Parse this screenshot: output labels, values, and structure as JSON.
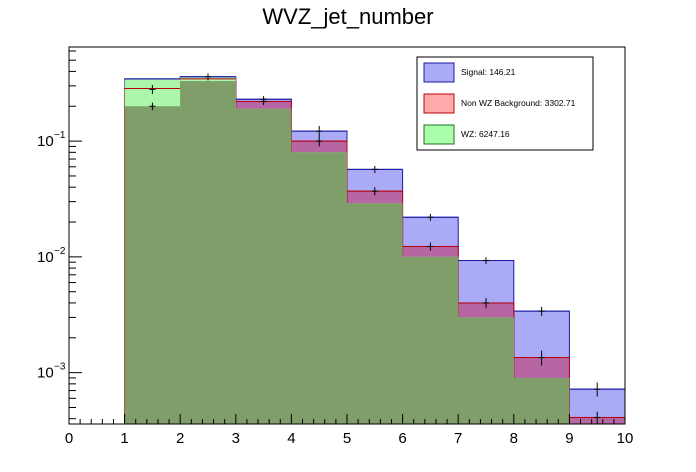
{
  "chart_data": {
    "type": "bar",
    "style": "stacked-histogram",
    "title": "WVZ_jet_number",
    "xlabel": "",
    "ylabel": "",
    "xlim": [
      0,
      10
    ],
    "ylim": [
      0.00036,
      0.65
    ],
    "yscale": "log",
    "x_ticks": [
      "0",
      "1",
      "2",
      "3",
      "4",
      "5",
      "6",
      "7",
      "8",
      "9",
      "10"
    ],
    "y_ticks": [
      {
        "value": 0.1,
        "base": "10",
        "exp": "−1"
      },
      {
        "value": 0.01,
        "base": "10",
        "exp": "−2"
      },
      {
        "value": 0.001,
        "base": "10",
        "exp": "−3"
      }
    ],
    "bin_edges": [
      0,
      1,
      2,
      3,
      4,
      5,
      6,
      7,
      8,
      9,
      10
    ],
    "stack_order": [
      "WZ",
      "Non WZ Background",
      "Signal"
    ],
    "series": [
      {
        "name": "Signal",
        "legend_label": "Signal: 146.21",
        "color": "#aaaaf6",
        "edge_color": "#1a1aa8",
        "cumulative": [
          0,
          0.345,
          0.36,
          0.23,
          0.122,
          0.057,
          0.022,
          0.0093,
          0.0034,
          0.00072
        ]
      },
      {
        "name": "Non WZ Background",
        "legend_label": "Non WZ Background: 3302.71",
        "color": "#b566a3",
        "edge_color": "#b8000c",
        "cumulative": [
          0,
          0.285,
          0.345,
          0.22,
          0.1,
          0.037,
          0.0123,
          0.004,
          0.00135,
          0.00041
        ]
      },
      {
        "name": "WZ",
        "legend_label": "WZ: 6247.16",
        "color": "#7f9e6a",
        "edge_color": "#1f6e1f",
        "cumulative": [
          0,
          0.2,
          0.33,
          0.19,
          0.08,
          0.029,
          0.01,
          0.003,
          0.0009,
          0.00036
        ]
      }
    ],
    "legend_swatches": {
      "Signal": "#aaaaf6",
      "Non WZ Background": "#ffaaaa",
      "WZ": "#aaffaa"
    },
    "top_overlay": {
      "name": "WZ upper",
      "color": "#aaf6aa",
      "values": [
        0,
        0.34,
        0.355,
        0.19,
        0.08,
        0.029,
        0.01,
        0.003,
        0.0009,
        0.00036
      ]
    },
    "error_bars": [
      {
        "bin": 1,
        "value": 0.28,
        "low": 0.255,
        "high": 0.305
      },
      {
        "bin": 1,
        "value": 0.2,
        "low": 0.185,
        "high": 0.215
      },
      {
        "bin": 2,
        "value": 0.36,
        "low": 0.335,
        "high": 0.385
      },
      {
        "bin": 3,
        "value": 0.23,
        "low": 0.215,
        "high": 0.245
      },
      {
        "bin": 3,
        "value": 0.22,
        "low": 0.205,
        "high": 0.235
      },
      {
        "bin": 4,
        "value": 0.122,
        "low": 0.11,
        "high": 0.135
      },
      {
        "bin": 4,
        "value": 0.1,
        "low": 0.09,
        "high": 0.11
      },
      {
        "bin": 5,
        "value": 0.057,
        "low": 0.053,
        "high": 0.061
      },
      {
        "bin": 5,
        "value": 0.037,
        "low": 0.034,
        "high": 0.04
      },
      {
        "bin": 6,
        "value": 0.022,
        "low": 0.0205,
        "high": 0.0235
      },
      {
        "bin": 6,
        "value": 0.0123,
        "low": 0.0113,
        "high": 0.0133
      },
      {
        "bin": 7,
        "value": 0.0093,
        "low": 0.0087,
        "high": 0.0099
      },
      {
        "bin": 7,
        "value": 0.004,
        "low": 0.0036,
        "high": 0.0044
      },
      {
        "bin": 8,
        "value": 0.0034,
        "low": 0.0031,
        "high": 0.0037
      },
      {
        "bin": 8,
        "value": 0.00135,
        "low": 0.00115,
        "high": 0.00155
      },
      {
        "bin": 9,
        "value": 0.00072,
        "low": 0.00062,
        "high": 0.00082
      },
      {
        "bin": 9,
        "value": 0.00041,
        "low": 0.00036,
        "high": 0.00046
      }
    ],
    "legend": {
      "placement": "top-right",
      "entries": [
        {
          "label": "Signal: 146.21",
          "swatch": "Signal"
        },
        {
          "label": "Non WZ Background: 3302.71",
          "swatch": "Non WZ Background"
        },
        {
          "label": "WZ: 6247.16",
          "swatch": "WZ"
        }
      ]
    }
  }
}
